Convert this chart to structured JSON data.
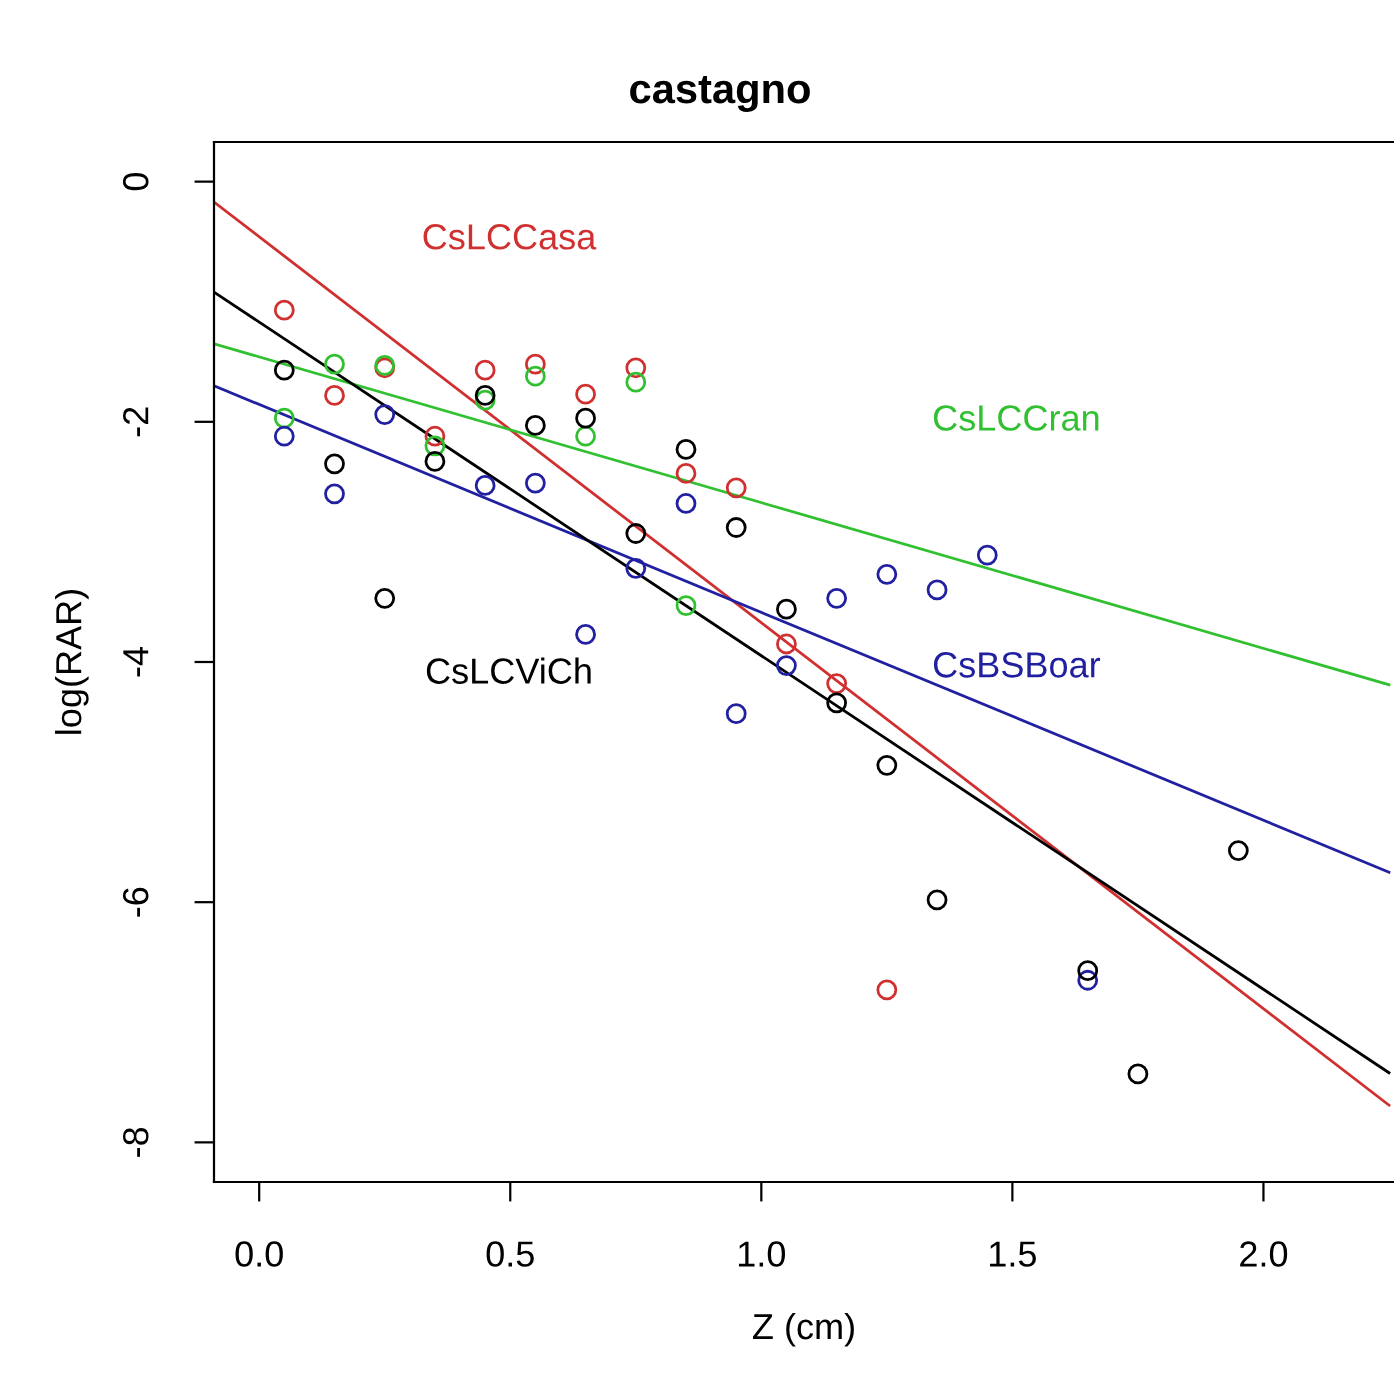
{
  "chart_data": {
    "type": "scatter",
    "title": "castagno",
    "xlabel": "Z (cm)",
    "ylabel": "log(RAR)",
    "xlim": [
      -0.09,
      2.26
    ],
    "ylim": [
      -8.33,
      0.33
    ],
    "xticks": [
      {
        "value": 0.0,
        "label": "0.0"
      },
      {
        "value": 0.5,
        "label": "0.5"
      },
      {
        "value": 1.0,
        "label": "1.0"
      },
      {
        "value": 1.5,
        "label": "1.5"
      },
      {
        "value": 2.0,
        "label": "2.0"
      }
    ],
    "yticks": [
      0,
      -2,
      -4,
      -6,
      -8
    ],
    "grid": false,
    "legend": false,
    "marker": "circle",
    "series": [
      {
        "color": "#d03030",
        "x": [
          0.05,
          0.15,
          0.25,
          0.35,
          0.45,
          0.55,
          0.65,
          0.75,
          0.85,
          0.95,
          1.05,
          1.15,
          1.25
        ],
        "values": [
          -1.07,
          -1.78,
          -1.55,
          -2.12,
          -1.57,
          -1.52,
          -1.77,
          -1.55,
          -2.43,
          -2.55,
          -3.85,
          -4.18,
          -6.73
        ]
      },
      {
        "color": "#30c030",
        "x": [
          0.05,
          0.15,
          0.25,
          0.35,
          0.45,
          0.55,
          0.65,
          0.75,
          0.85
        ],
        "values": [
          -1.97,
          -1.52,
          -1.53,
          -2.2,
          -1.82,
          -1.62,
          -2.12,
          -1.67,
          -3.53
        ]
      },
      {
        "color": "#2020a0",
        "x": [
          0.05,
          0.15,
          0.25,
          0.45,
          0.55,
          0.65,
          0.75,
          0.85,
          0.95,
          1.05,
          1.15,
          1.25,
          1.35,
          1.45,
          1.65
        ],
        "values": [
          -2.12,
          -2.6,
          -1.94,
          -2.53,
          -2.51,
          -3.77,
          -3.22,
          -2.68,
          -4.43,
          -4.03,
          -3.47,
          -3.27,
          -3.4,
          -3.11,
          -6.65
        ]
      },
      {
        "color": "#000000",
        "x": [
          0.05,
          0.15,
          0.25,
          0.35,
          0.45,
          0.55,
          0.65,
          0.75,
          0.85,
          0.95,
          1.05,
          1.15,
          1.25,
          1.35,
          1.65,
          1.75,
          1.95
        ],
        "values": [
          -1.57,
          -2.35,
          -3.47,
          -2.33,
          -1.78,
          -2.03,
          -1.97,
          -2.93,
          -2.23,
          -2.88,
          -3.56,
          -4.34,
          -4.86,
          -5.98,
          -6.57,
          -7.43,
          -5.57
        ]
      },
      {
        "type": "line",
        "marker": "none",
        "name": "CsLCCasa",
        "color": "#d03030",
        "x": [
          -0.09,
          2.25
        ],
        "values": [
          -0.17,
          -7.69
        ]
      },
      {
        "type": "line",
        "marker": "none",
        "name": "CsLCCran",
        "color": "#30c030",
        "x": [
          -0.09,
          2.25
        ],
        "values": [
          -1.35,
          -4.19
        ]
      },
      {
        "type": "line",
        "marker": "none",
        "name": "CsBSBoar",
        "color": "#2020a0",
        "x": [
          -0.09,
          2.25
        ],
        "values": [
          -1.7,
          -5.75
        ]
      },
      {
        "type": "line",
        "marker": "none",
        "name": "CsLCViCh",
        "color": "#000000",
        "x": [
          -0.09,
          2.25
        ],
        "values": [
          -0.92,
          -7.42
        ]
      }
    ]
  }
}
